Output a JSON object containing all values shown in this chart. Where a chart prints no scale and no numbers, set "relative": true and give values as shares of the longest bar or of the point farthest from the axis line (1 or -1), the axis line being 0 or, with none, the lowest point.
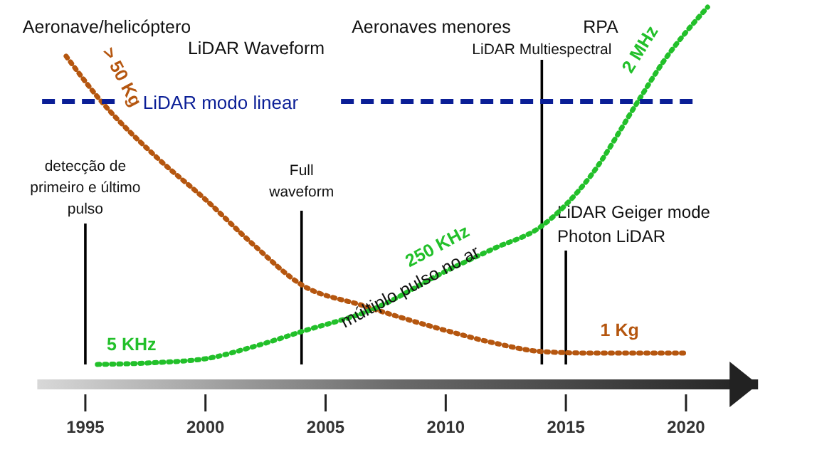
{
  "chart_data": {
    "type": "line",
    "relative": true,
    "xlim": [
      1993,
      2023
    ],
    "xticks": [
      1995,
      2000,
      2005,
      2010,
      2015,
      2020
    ],
    "grid": false,
    "marker": "none",
    "line_style": "dotted",
    "series": [
      {
        "color": "#b5560f",
        "x": [
          1994.2,
          1995.6,
          1998,
          2000,
          2002,
          2004,
          2006.5,
          2010,
          2012,
          2014,
          2016,
          2018,
          2020
        ],
        "values": [
          0.87,
          0.755,
          0.6,
          0.49,
          0.37,
          0.264,
          0.21,
          0.143,
          0.11,
          0.087,
          0.083,
          0.083,
          0.083
        ]
      },
      {
        "color": "#22c02a",
        "x": [
          1995.5,
          1998,
          2000,
          2002,
          2004,
          2007,
          2010,
          2012,
          2014,
          2016,
          2018,
          2019,
          2020.9
        ],
        "values": [
          0.053,
          0.058,
          0.068,
          0.1,
          0.14,
          0.2,
          0.3,
          0.36,
          0.42,
          0.55,
          0.75,
          0.85,
          1
        ]
      },
      {
        "name": "LiDAR modo linear",
        "color": "#0a1e96",
        "line_style": "dashed",
        "x": [
          1993.2,
          2020.5
        ],
        "values": [
          0.75,
          0.75
        ]
      }
    ],
    "ref_lines": [
      {
        "axis": "x",
        "value": 1995,
        "label": "detecção de primeiro e último pulso",
        "color": "#000000"
      },
      {
        "axis": "x",
        "value": 2004,
        "label": "Full waveform",
        "color": "#000000"
      },
      {
        "axis": "x",
        "value": 2014,
        "label": "LiDAR Multiespectral",
        "color": "#000000"
      },
      {
        "axis": "x",
        "value": 2015,
        "label": "LiDAR Geiger mode Photon LiDAR",
        "color": "#000000"
      }
    ],
    "annotations": [
      "Aeronave/helicóptero",
      "LiDAR Waveform",
      "Aeronaves menores",
      "RPA",
      {
        "text": "> 50 Kg",
        "x": 1995.6,
        "y": 0.755
      },
      {
        "text": "2 MHz",
        "x": 2019,
        "y": 0.85
      },
      {
        "text": "250 KHz",
        "x": 2010,
        "y": 0.3
      },
      "múltiplo pulso no ar",
      {
        "text": "5 KHz",
        "x": 1995.5,
        "y": 0.053
      },
      {
        "text": "1 Kg",
        "x": 2017,
        "y": 0.083
      }
    ]
  }
}
